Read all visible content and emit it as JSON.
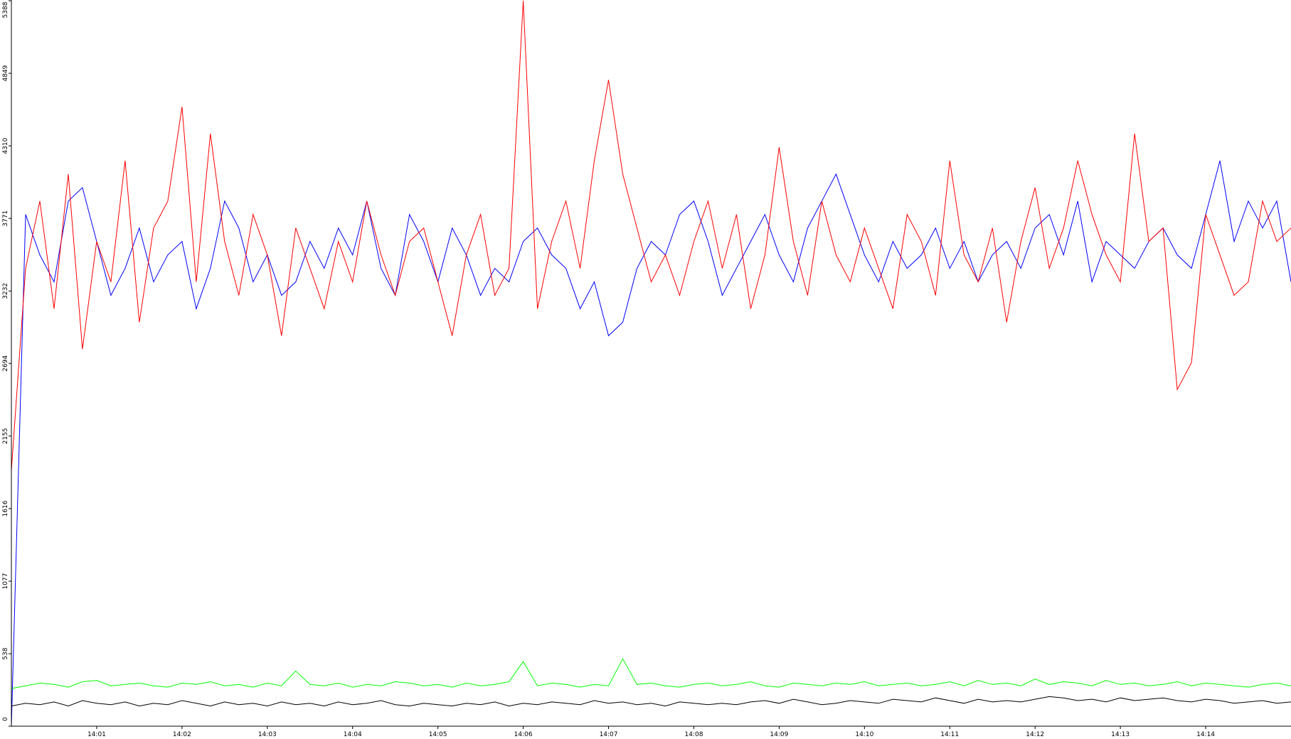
{
  "chart_data": {
    "type": "line",
    "categories": [
      null,
      null,
      null,
      null,
      null,
      null,
      "14:01",
      null,
      null,
      null,
      null,
      null,
      "14:02",
      null,
      null,
      null,
      null,
      null,
      "14:03",
      null,
      null,
      null,
      null,
      null,
      "14:04",
      null,
      null,
      null,
      null,
      null,
      "14:05",
      null,
      null,
      null,
      null,
      null,
      "14:06",
      null,
      null,
      null,
      null,
      null,
      "14:07",
      null,
      null,
      null,
      null,
      null,
      "14:08",
      null,
      null,
      null,
      null,
      null,
      "14:09",
      null,
      null,
      null,
      null,
      null,
      "14:10",
      null,
      null,
      null,
      null,
      null,
      "14:11",
      null,
      null,
      null,
      null,
      null,
      "14:12",
      null,
      null,
      null,
      null,
      null,
      "14:13",
      null,
      null,
      null,
      null,
      null,
      "14:14",
      null,
      null,
      null,
      null,
      null,
      null
    ],
    "series": [
      {
        "color": "#0000ff",
        "values": [
          0,
          3800,
          3500,
          3300,
          3900,
          4000,
          3600,
          3200,
          3400,
          3700,
          3300,
          3500,
          3600,
          3100,
          3400,
          3900,
          3700,
          3300,
          3500,
          3200,
          3300,
          3600,
          3400,
          3700,
          3500,
          3900,
          3400,
          3200,
          3800,
          3600,
          3300,
          3700,
          3500,
          3200,
          3400,
          3300,
          3600,
          3700,
          3500,
          3400,
          3100,
          3300,
          2900,
          3000,
          3400,
          3600,
          3500,
          3800,
          3900,
          3600,
          3200,
          3400,
          3600,
          3800,
          3500,
          3300,
          3700,
          3900,
          4100,
          3800,
          3500,
          3300,
          3600,
          3400,
          3500,
          3700,
          3400,
          3600,
          3300,
          3500,
          3600,
          3400,
          3700,
          3800,
          3500,
          3900,
          3300,
          3600,
          3500,
          3400,
          3600,
          3700,
          3500,
          3400,
          3800,
          4200,
          3600,
          3900,
          3700,
          3900,
          3300
        ]
      },
      {
        "color": "#ff0000",
        "values": [
          1900,
          3400,
          3900,
          3100,
          4100,
          2800,
          3600,
          3300,
          4200,
          3000,
          3700,
          3900,
          4600,
          3300,
          4400,
          3600,
          3200,
          3800,
          3500,
          2900,
          3700,
          3400,
          3100,
          3600,
          3300,
          3900,
          3500,
          3200,
          3600,
          3700,
          3300,
          2900,
          3500,
          3800,
          3200,
          3400,
          5388,
          3100,
          3600,
          3900,
          3400,
          4200,
          4800,
          4100,
          3700,
          3300,
          3500,
          3200,
          3600,
          3900,
          3400,
          3800,
          3100,
          3500,
          4300,
          3600,
          3200,
          3900,
          3500,
          3300,
          3700,
          3400,
          3100,
          3800,
          3600,
          3200,
          4200,
          3500,
          3300,
          3700,
          3000,
          3600,
          4000,
          3400,
          3700,
          4200,
          3800,
          3500,
          3300,
          4400,
          3600,
          3700,
          2500,
          2700,
          3800,
          3500,
          3200,
          3300,
          3900,
          3600,
          3700
        ]
      },
      {
        "color": "#00ff00",
        "values": [
          280,
          300,
          320,
          310,
          290,
          330,
          340,
          300,
          310,
          320,
          300,
          290,
          320,
          310,
          330,
          300,
          310,
          290,
          320,
          300,
          410,
          310,
          300,
          320,
          290,
          310,
          300,
          330,
          320,
          300,
          310,
          290,
          320,
          300,
          310,
          330,
          480,
          300,
          320,
          310,
          290,
          310,
          300,
          500,
          310,
          320,
          300,
          290,
          310,
          320,
          300,
          310,
          330,
          300,
          290,
          320,
          310,
          300,
          320,
          310,
          330,
          300,
          310,
          320,
          300,
          310,
          330,
          300,
          340,
          310,
          320,
          300,
          350,
          310,
          330,
          320,
          300,
          340,
          310,
          320,
          300,
          310,
          330,
          300,
          320,
          310,
          300,
          290,
          310,
          320,
          300
        ]
      },
      {
        "color": "#000000",
        "values": [
          150,
          170,
          160,
          180,
          150,
          190,
          170,
          160,
          180,
          150,
          170,
          160,
          190,
          170,
          150,
          180,
          160,
          170,
          150,
          180,
          160,
          170,
          150,
          180,
          160,
          170,
          190,
          160,
          150,
          170,
          160,
          150,
          170,
          160,
          180,
          150,
          170,
          160,
          180,
          170,
          160,
          190,
          170,
          180,
          160,
          170,
          150,
          180,
          170,
          160,
          170,
          160,
          180,
          190,
          170,
          200,
          180,
          160,
          170,
          190,
          180,
          170,
          200,
          190,
          180,
          210,
          190,
          170,
          200,
          180,
          190,
          180,
          200,
          220,
          210,
          190,
          200,
          180,
          210,
          190,
          200,
          210,
          190,
          180,
          200,
          190,
          170,
          180,
          190,
          170,
          180
        ]
      }
    ],
    "ylim": [
      0,
      5388
    ],
    "yticks": [
      0,
      538,
      1077,
      1616,
      2155,
      2694,
      3232,
      3771,
      4310,
      4849,
      5388
    ]
  }
}
